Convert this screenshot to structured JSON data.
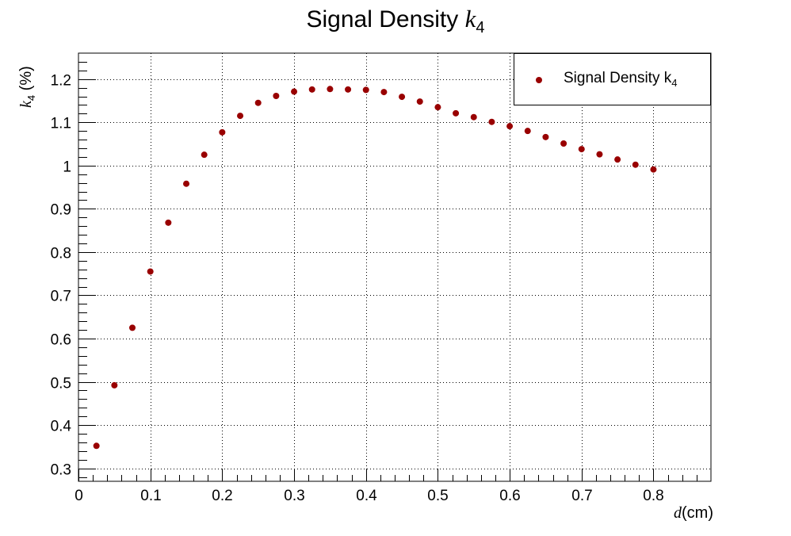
{
  "chart_data": {
    "type": "scatter",
    "title_text": "Signal Density",
    "title_symbol": "k",
    "title_subscript": "4",
    "xlabel_symbol": "d",
    "xlabel_unit": "(cm)",
    "ylabel_symbol": "k",
    "ylabel_subscript": "4",
    "ylabel_unit": " (%)",
    "xlim": [
      0,
      0.88
    ],
    "ylim": [
      0.27,
      1.26
    ],
    "x_ticks": [
      0,
      0.1,
      0.2,
      0.3,
      0.4,
      0.5,
      0.6,
      0.7,
      0.8
    ],
    "x_tick_labels": [
      "0",
      "0.1",
      "0.2",
      "0.3",
      "0.4",
      "0.5",
      "0.6",
      "0.7",
      "0.8"
    ],
    "y_ticks": [
      0.3,
      0.4,
      0.5,
      0.6,
      0.7,
      0.8,
      0.9,
      1.0,
      1.1,
      1.2
    ],
    "y_tick_labels": [
      "0.3",
      "0.4",
      "0.5",
      "0.6",
      "0.7",
      "0.8",
      "0.9",
      "1",
      "1.1",
      "1.2"
    ],
    "grid": true,
    "legend_placement": "top-right",
    "marker_color": "#990000",
    "series": [
      {
        "name": "Signal Density k4",
        "legend_text": "Signal Density k",
        "legend_subscript": "4",
        "x": [
          0.025,
          0.05,
          0.075,
          0.1,
          0.125,
          0.15,
          0.175,
          0.2,
          0.225,
          0.25,
          0.275,
          0.3,
          0.325,
          0.35,
          0.375,
          0.4,
          0.425,
          0.45,
          0.475,
          0.5,
          0.525,
          0.55,
          0.575,
          0.6,
          0.625,
          0.65,
          0.675,
          0.7,
          0.725,
          0.75,
          0.775,
          0.8
        ],
        "y": [
          0.352,
          0.492,
          0.625,
          0.755,
          0.868,
          0.958,
          1.025,
          1.077,
          1.115,
          1.145,
          1.161,
          1.171,
          1.176,
          1.177,
          1.176,
          1.175,
          1.17,
          1.159,
          1.148,
          1.135,
          1.121,
          1.112,
          1.101,
          1.091,
          1.08,
          1.066,
          1.051,
          1.038,
          1.026,
          1.014,
          1.002,
          0.991
        ]
      }
    ]
  }
}
